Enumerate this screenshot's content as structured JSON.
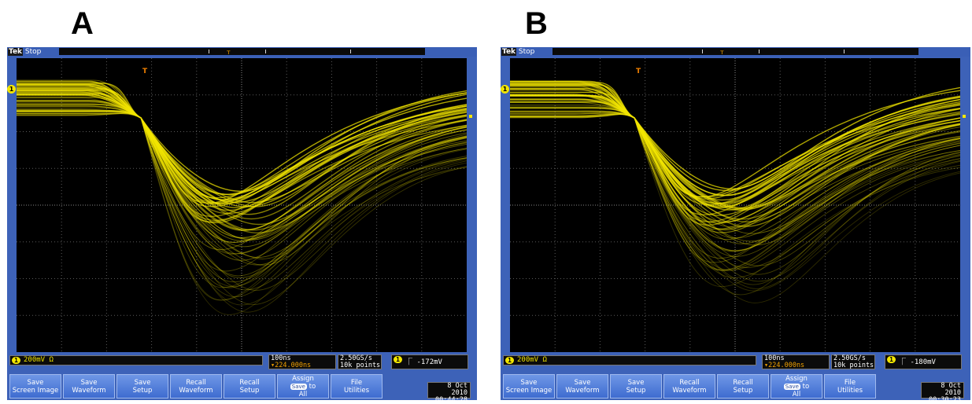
{
  "panels": [
    {
      "letter": "A",
      "status": "Stop",
      "ch1_scale": "200mV Ω",
      "timebase": "100ns",
      "delay": "▾224.000ns",
      "sample_rate": "2.50GS/s",
      "record_length": "10k points",
      "trigger_level": "-172mV",
      "date": "8 Oct  2010",
      "time": "00:44:28"
    },
    {
      "letter": "B",
      "status": "Stop",
      "ch1_scale": "200mV Ω",
      "timebase": "100ns",
      "delay": "▾224.000ns",
      "sample_rate": "2.50GS/s",
      "record_length": "10k points",
      "trigger_level": "-180mV",
      "date": "8 Oct  2010",
      "time": "00:30:23"
    }
  ],
  "brand": "Tek",
  "channel_marker": "1",
  "trigger_marker": "T",
  "trigger_slope_icon": "falling-edge-icon",
  "menu_buttons": [
    {
      "id": "save-screen-image",
      "label": "Save\nScreen Image"
    },
    {
      "id": "save-waveform",
      "label": "Save\nWaveform"
    },
    {
      "id": "save-setup",
      "label": "Save\nSetup"
    },
    {
      "id": "recall-waveform",
      "label": "Recall\nWaveform"
    },
    {
      "id": "recall-setup",
      "label": "Recall\nSetup"
    },
    {
      "id": "assign-save-to-all",
      "label_top": "Assign",
      "label_pill": "Save",
      "label_mid": "to",
      "label_bottom": "All"
    },
    {
      "id": "file-utilities",
      "label": "File\nUtilities"
    }
  ],
  "colors": {
    "frame": "#3d62b8",
    "screen": "#000000",
    "trace": "#f3e600",
    "grid": "#5a5a5a",
    "button": "#4f7fdc"
  }
}
